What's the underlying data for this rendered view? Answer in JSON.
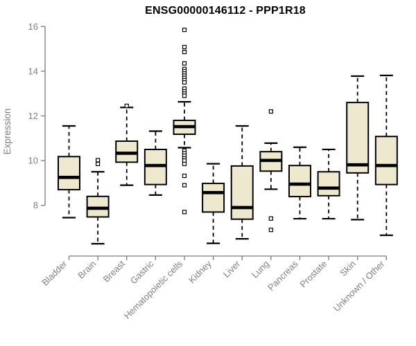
{
  "title": "ENSG00000146112 - PPP1R18",
  "chart_data": {
    "type": "boxplot",
    "title": "ENSG00000146112 - PPP1R18",
    "ylabel": "Expression",
    "yticks": [
      8,
      10,
      12,
      14,
      16
    ],
    "ylim": [
      6.1,
      16.1
    ],
    "grid": false,
    "legend": "none",
    "categories": [
      "Bladder",
      "Brain",
      "Breast",
      "Gastric",
      "Hematopoietic cells",
      "Kidney",
      "Liver",
      "Lung",
      "Pancreas",
      "Prostate",
      "Skin",
      "Unknown / Other"
    ],
    "series": [
      {
        "name": "Bladder",
        "whisker_low": 7.45,
        "q1": 8.7,
        "median": 9.25,
        "q3": 10.18,
        "whisker_high": 11.55,
        "outliers": []
      },
      {
        "name": "Brain",
        "whisker_low": 6.28,
        "q1": 7.48,
        "median": 7.87,
        "q3": 8.4,
        "whisker_high": 9.5,
        "outliers": [
          9.85,
          10.02
        ]
      },
      {
        "name": "Breast",
        "whisker_low": 8.9,
        "q1": 9.93,
        "median": 10.33,
        "q3": 10.87,
        "whisker_high": 12.38,
        "outliers": [
          12.45
        ]
      },
      {
        "name": "Gastric",
        "whisker_low": 8.46,
        "q1": 8.93,
        "median": 9.78,
        "q3": 10.5,
        "whisker_high": 11.32,
        "outliers": []
      },
      {
        "name": "Hematopoietic cells",
        "whisker_low": 10.58,
        "q1": 11.18,
        "median": 11.52,
        "q3": 11.8,
        "whisker_high": 12.63,
        "outliers": [
          15.85,
          15.08,
          14.86,
          14.35,
          14.1,
          14.0,
          13.9,
          13.8,
          13.7,
          13.6,
          13.5,
          13.22,
          13.1,
          13.0,
          12.9,
          10.45,
          10.33,
          10.22,
          10.1,
          10.0,
          9.85,
          9.32,
          8.9,
          7.7
        ]
      },
      {
        "name": "Kidney",
        "whisker_low": 6.3,
        "q1": 7.7,
        "median": 8.57,
        "q3": 8.98,
        "whisker_high": 9.86,
        "outliers": []
      },
      {
        "name": "Liver",
        "whisker_low": 6.5,
        "q1": 7.38,
        "median": 7.9,
        "q3": 9.76,
        "whisker_high": 11.55,
        "outliers": []
      },
      {
        "name": "Lung",
        "whisker_low": 8.72,
        "q1": 9.53,
        "median": 10.01,
        "q3": 10.4,
        "whisker_high": 10.78,
        "outliers": [
          12.2,
          7.41,
          6.9
        ]
      },
      {
        "name": "Pancreas",
        "whisker_low": 7.4,
        "q1": 8.39,
        "median": 8.95,
        "q3": 9.78,
        "whisker_high": 10.6,
        "outliers": []
      },
      {
        "name": "Prostate",
        "whisker_low": 7.4,
        "q1": 8.43,
        "median": 8.77,
        "q3": 9.5,
        "whisker_high": 10.5,
        "outliers": []
      },
      {
        "name": "Skin",
        "whisker_low": 7.36,
        "q1": 9.45,
        "median": 9.81,
        "q3": 12.6,
        "whisker_high": 13.78,
        "outliers": []
      },
      {
        "name": "Unknown / Other",
        "whisker_low": 6.66,
        "q1": 8.93,
        "median": 9.78,
        "q3": 11.08,
        "whisker_high": 13.81,
        "outliers": []
      }
    ]
  },
  "colors": {
    "box_fill": "#ede8ce",
    "box_border": "#000000",
    "median": "#000000",
    "whisker": "#000000",
    "outlier": "#000000",
    "axis": "#7a7a7a",
    "tick_label": "#7f7f7f",
    "title": "#000000",
    "background": "#ffffff"
  }
}
